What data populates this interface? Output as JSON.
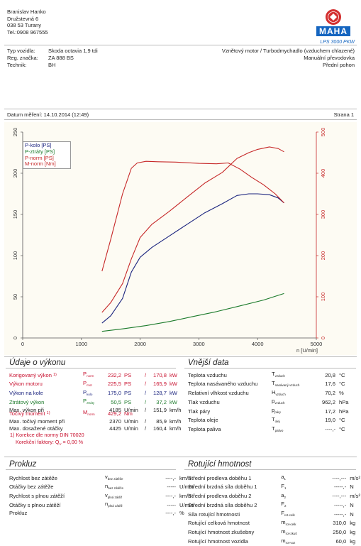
{
  "owner": {
    "name": "Branislav Hanko",
    "street": "Družstevná 6",
    "city": "038 53 Turany",
    "phone": "Tel.:0908 967555"
  },
  "logo": {
    "brand": "MAHA",
    "model": "LPS 3000 PKW",
    "red": "#d32f2f",
    "blue": "#1565c0"
  },
  "vehicle": {
    "type_label": "Typ vozidla:",
    "type_value": "Skoda octavia 1,9 tdi",
    "reg_label": "Reg. značka:",
    "reg_value": "ZA 888 BS",
    "tech_label": "Technik:",
    "tech_value": "BH",
    "engine": "Vznětový motor / Turbodmychadlo (vzduchem chlazené)",
    "gearbox": "Manuální převodovka",
    "drive": "Přední pohon"
  },
  "measurement": {
    "date": "Datum měření: 14.10.2014 (12:49)",
    "page": "Strana 1"
  },
  "chart_data": {
    "type": "line",
    "xlabel": "n [U/min]",
    "xlim": [
      0,
      5000
    ],
    "x_ticks": [
      "0",
      "1000",
      "2000",
      "3000",
      "4000",
      "5000"
    ],
    "ylim_left": [
      0,
      250
    ],
    "y_ticks_left": [
      "0",
      "50",
      "100",
      "150",
      "200",
      "250"
    ],
    "ylim_right": [
      0,
      500
    ],
    "y_ticks_right": [
      "0",
      "100",
      "200",
      "300",
      "400",
      "500"
    ],
    "grid": false,
    "legend_position": "top-left",
    "series": [
      {
        "name": "P-kolo [PS]",
        "color": "#1a237e",
        "axis": "left",
        "x": [
          1350,
          1500,
          1700,
          1850,
          2000,
          2200,
          2500,
          2800,
          3100,
          3400,
          3650,
          3850,
          4000,
          4200,
          4350,
          4450
        ],
        "y": [
          18,
          27,
          48,
          80,
          98,
          110,
          124,
          138,
          152,
          163,
          173,
          175,
          175,
          174,
          170,
          164
        ]
      },
      {
        "name": "P-ztráty [PS]",
        "color": "#1b7a2a",
        "axis": "left",
        "x": [
          1350,
          1700,
          2100,
          2500,
          2900,
          3300,
          3700,
          4100,
          4450
        ],
        "y": [
          8,
          11,
          15,
          20,
          26,
          32,
          39,
          46,
          54
        ]
      },
      {
        "name": "P-norm [PS]",
        "color": "#c62828",
        "axis": "left",
        "x": [
          1350,
          1500,
          1700,
          1850,
          2000,
          2200,
          2500,
          2800,
          3100,
          3400,
          3650,
          3850,
          4000,
          4200,
          4350,
          4450
        ],
        "y": [
          31,
          43,
          66,
          96,
          122,
          138,
          154,
          171,
          188,
          201,
          218,
          225,
          229,
          232,
          230,
          226
        ]
      },
      {
        "name": "M-norm [Nm]",
        "color": "#c62828",
        "axis": "right",
        "x": [
          1350,
          1500,
          1700,
          1850,
          1950,
          2100,
          2300,
          2600,
          3000,
          3300,
          3500,
          3700,
          3900,
          4100,
          4300,
          4450
        ],
        "y": [
          162,
          240,
          350,
          412,
          425,
          429,
          428,
          427,
          424,
          423,
          425,
          410,
          390,
          372,
          350,
          328
        ]
      }
    ]
  },
  "udaje": {
    "title": "Údaje o výkonu",
    "rows": [
      {
        "label": "Korigovaný výkon",
        "note": "1)",
        "sym": "P",
        "symsub": "norm",
        "v1": "232,2",
        "u1": "PS",
        "sep": "/",
        "v2": "170,8",
        "u2": "kW",
        "cls": "red"
      },
      {
        "label": "Výkon motoru",
        "sym": "P",
        "symsub": "mot",
        "v1": "225,5",
        "u1": "PS",
        "sep": "/",
        "v2": "165,9",
        "u2": "kW",
        "cls": "red"
      },
      {
        "label": "Výkon na kole",
        "sym": "P",
        "symsub": "kolo",
        "v1": "175,0",
        "u1": "PS",
        "sep": "/",
        "v2": "128,7",
        "u2": "kW",
        "cls": "blue"
      },
      {
        "label": "Ztrátový výkon",
        "sym": "P",
        "symsub": "ztráty",
        "v1": "50,5",
        "u1": "PS",
        "sep": "/",
        "v2": "37,2",
        "u2": "kW",
        "cls": "green"
      },
      {
        "label": "Max. výkon při",
        "sym": "",
        "symsub": "",
        "v1": "4185",
        "u1": "U/min",
        "sep": "/",
        "v2": "151,9",
        "u2": "km/h",
        "cls": ""
      }
    ],
    "moment_rows": [
      {
        "label": "Točivý moment",
        "note": "1)",
        "sym": "M",
        "symsub": "norm",
        "v1": "429,2",
        "u1": "Nm",
        "sep": "",
        "v2": "",
        "u2": "",
        "cls": "red"
      },
      {
        "label": "Max. točivý moment při",
        "sym": "",
        "symsub": "",
        "v1": "2370",
        "u1": "U/min",
        "sep": "/",
        "v2": "85,9",
        "u2": "km/h",
        "cls": ""
      },
      {
        "label": "Max. dosažené otáčky",
        "sym": "",
        "symsub": "",
        "v1": "4425",
        "u1": "U/min",
        "sep": "/",
        "v2": "160,4",
        "u2": "km/h",
        "cls": ""
      }
    ],
    "footnote1": "1) Korekce dle normy DIN 70020",
    "footnote2": "Korekční faktory: Q",
    "footnote2_sub": "V",
    "footnote2_val": " = 0,00 %"
  },
  "vnejsi": {
    "title": "Vnější data",
    "rows": [
      {
        "label": "Teplota vzduchu",
        "sym": "T",
        "symsub": "vzduch",
        "val": "20,8",
        "unit": "°C"
      },
      {
        "label": "Teplota nasávaného vzduchu",
        "sym": "T",
        "symsub": "nasávaný vzduch",
        "val": "17,6",
        "unit": "°C"
      },
      {
        "label": "Relativní vlhkost vzduchu",
        "sym": "H",
        "symsub": "vzduch",
        "val": "70,2",
        "unit": "%"
      },
      {
        "label": "Tlak vzduchu",
        "sym": "p",
        "symsub": "vzduch",
        "val": "962,2",
        "unit": "hPa"
      },
      {
        "label": "Tlak páry",
        "sym": "p",
        "symsub": "páry",
        "val": "17,2",
        "unit": "hPa"
      },
      {
        "label": "Teplota oleje",
        "sym": "T",
        "symsub": "olej",
        "val": "19,0",
        "unit": "°C"
      },
      {
        "label": "Teplota paliva",
        "sym": "T",
        "symsub": "palivo",
        "val": "----,-",
        "unit": "°C"
      }
    ]
  },
  "prokluz": {
    "title": "Prokluz",
    "rows": [
      {
        "label": "Rychlost bez zátěže",
        "sym": "v",
        "symsub": "bez zátěže",
        "val": "----,-",
        "unit": "km/h"
      },
      {
        "label": "Otáčky bez zátěže",
        "sym": "n",
        "symsub": "bez zátěže",
        "val": "-----",
        "unit": "U/min"
      },
      {
        "label": "Rychlost s plnou zátěží",
        "sym": "v",
        "symsub": "plná zátěž",
        "val": "----,-",
        "unit": "km/h"
      },
      {
        "label": "Otáčky s plnou zátěží",
        "sym": "n",
        "symsub": "plná zátěž",
        "val": "-----",
        "unit": "U/min"
      },
      {
        "label": "Prokluz",
        "sym": "",
        "symsub": "",
        "val": "----,-",
        "unit": "%"
      }
    ]
  },
  "rotujici": {
    "title": "Rotující hmotnost",
    "rows": [
      {
        "label": "Střední prodleva doběhu 1",
        "sym": "a",
        "symsub": "1",
        "val": "----,---",
        "unit": "m/s²"
      },
      {
        "label": "Střední brzdná síla doběhu 1",
        "sym": "F",
        "symsub": "1",
        "val": "-----,-",
        "unit": "N"
      },
      {
        "label": "Střední prodleva doběhu 2",
        "sym": "a",
        "symsub": "2",
        "val": "----,---",
        "unit": "m/s²"
      },
      {
        "label": "Střední brzdná síla doběhu 2",
        "sym": "F",
        "symsub": "2",
        "val": "-----,-",
        "unit": "N"
      },
      {
        "label": "Síla rotující hmotnosti",
        "sym": "F",
        "symsub": "rot-celk",
        "val": "-----,-",
        "unit": "N"
      },
      {
        "label": "Rotující celková hmotnost",
        "sym": "m",
        "symsub": "rot-celk",
        "val": "310,0",
        "unit": "kg"
      },
      {
        "label": "Rotující hmotnost zkušebny",
        "sym": "m",
        "symsub": "rot-zkuš",
        "val": "250,0",
        "unit": "kg"
      },
      {
        "label": "Rotující hmotnost vozidla",
        "sym": "m",
        "symsub": "rot-voz",
        "val": "60,0",
        "unit": "kg"
      }
    ]
  }
}
